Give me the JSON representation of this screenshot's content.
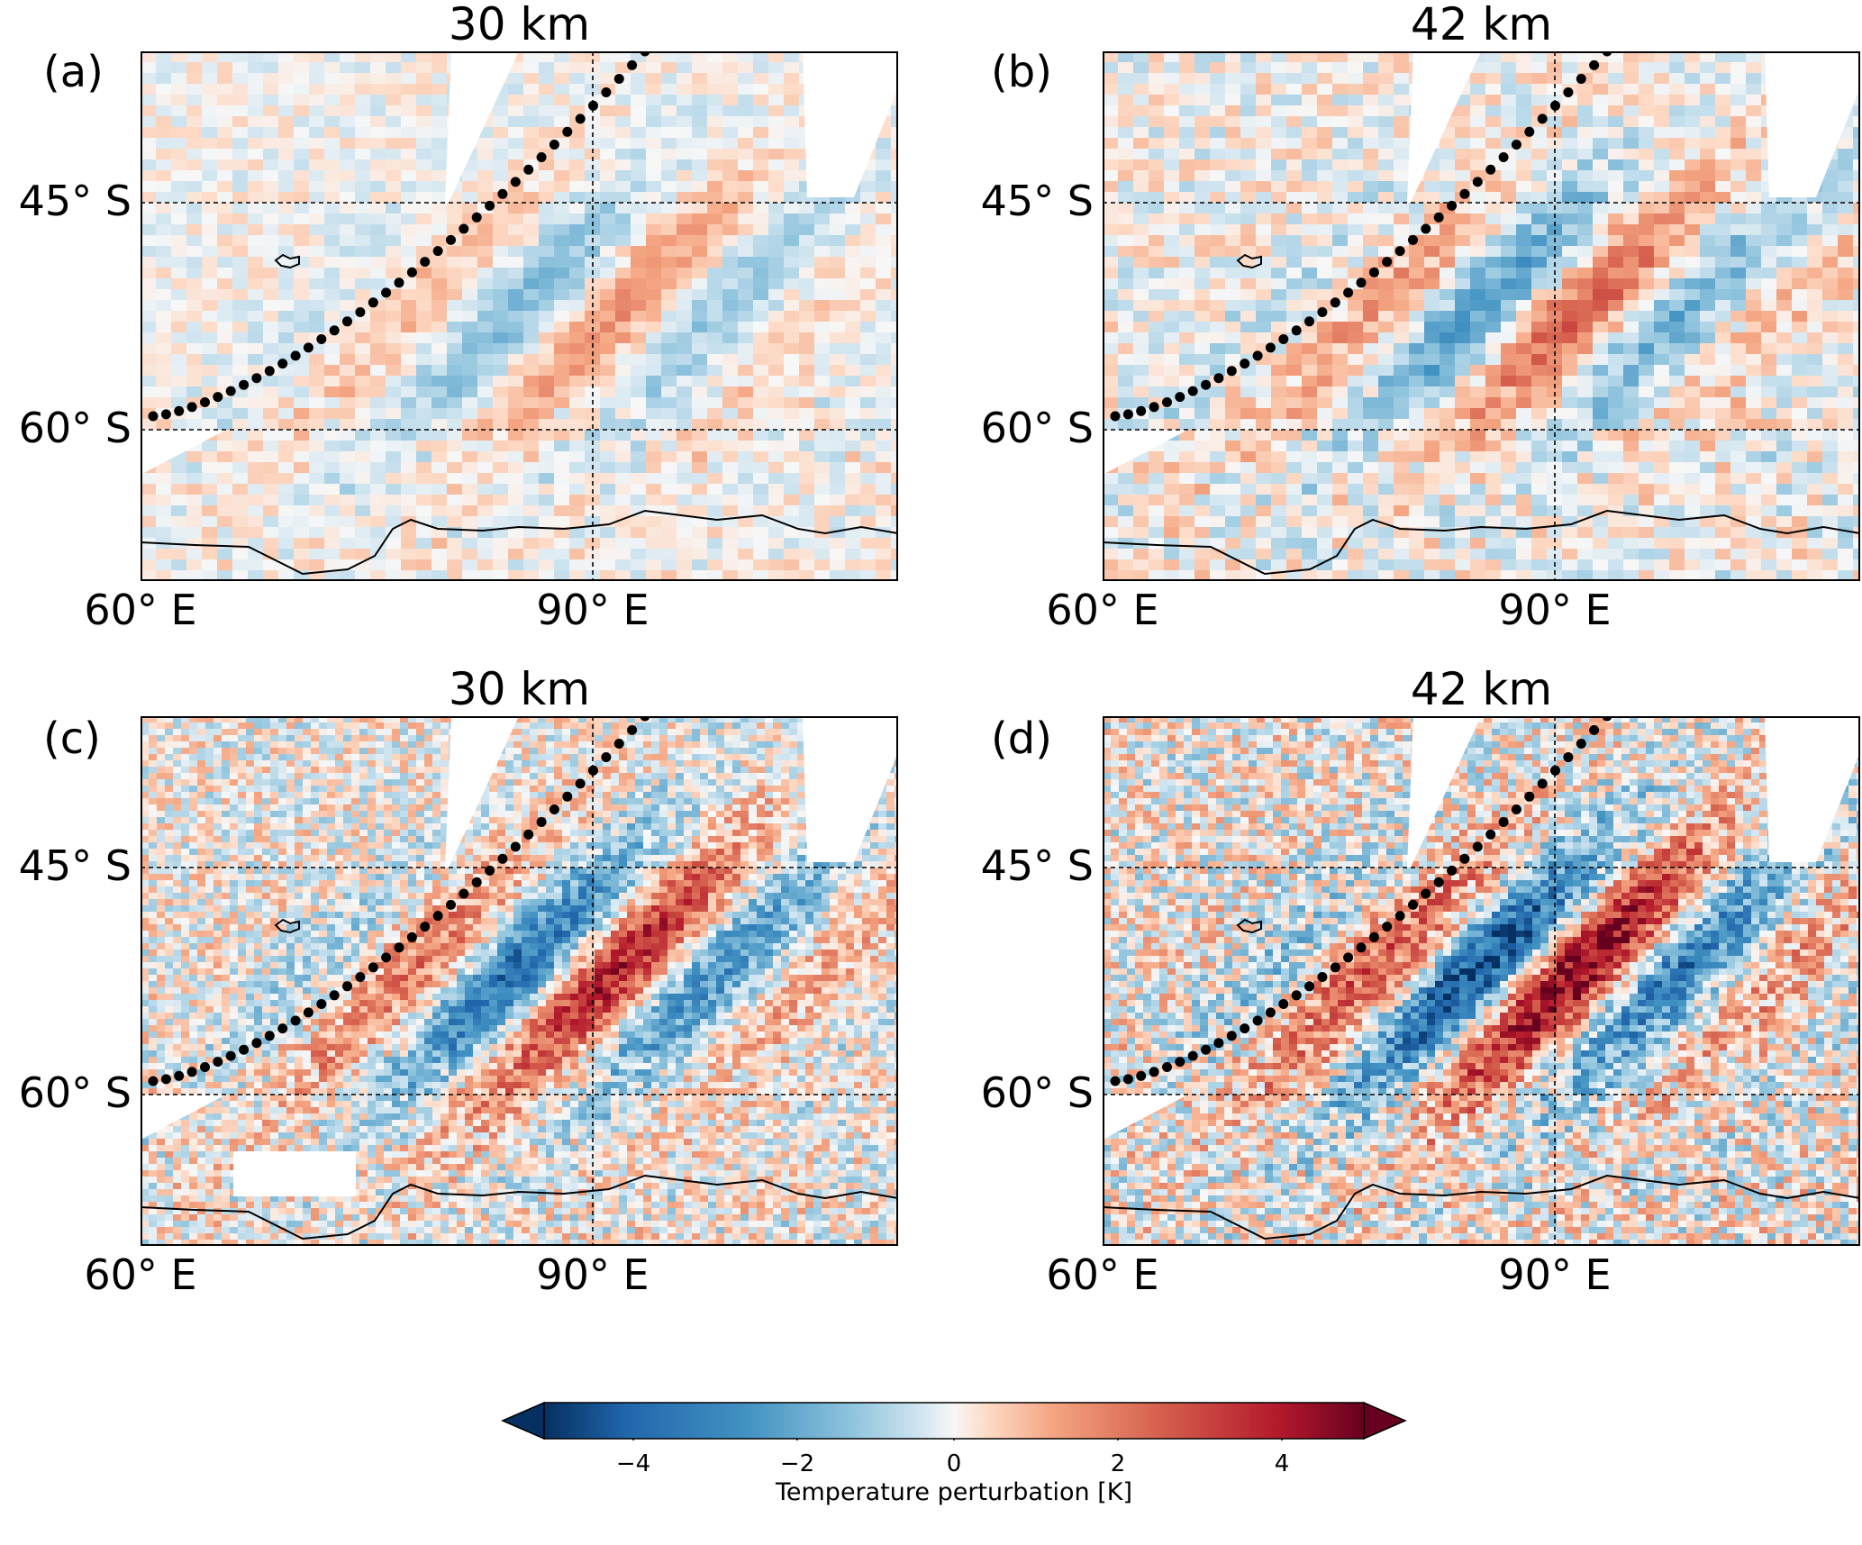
{
  "figure": {
    "panels": [
      {
        "id": "a",
        "label": "(a)",
        "title": "30 km",
        "style": "coarse",
        "intensity": 0.55
      },
      {
        "id": "b",
        "label": "(b)",
        "title": "42 km",
        "style": "coarse",
        "intensity": 0.85
      },
      {
        "id": "c",
        "label": "(c)",
        "title": "30 km",
        "style": "fine",
        "intensity": 0.8
      },
      {
        "id": "d",
        "label": "(d)",
        "title": "42 km",
        "style": "fine",
        "intensity": 1.0
      }
    ],
    "lat_labels": [
      "45° S",
      "60° S"
    ],
    "lon_labels": [
      "60° E",
      "90° E"
    ],
    "colorbar": {
      "label": "Temperature perturbation [K]",
      "ticks": [
        "−4",
        "−2",
        "0",
        "2",
        "4"
      ],
      "min": -5,
      "max": 5,
      "colormap": "RdBu_r",
      "extend": "both",
      "colors": {
        "negative": "#053061",
        "zero": "#f7f7f7",
        "positive": "#67001f"
      }
    },
    "annotations": "dotted track line and coastline overlay"
  }
}
